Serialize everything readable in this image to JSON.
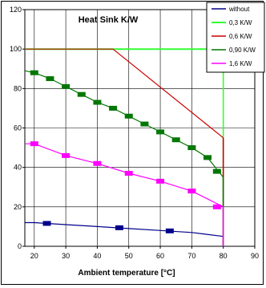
{
  "chart_data": {
    "type": "line",
    "title": "Heat Sink K/W",
    "xlabel": "Ambient temperature  [°C]",
    "ylabel": "",
    "xlim": [
      17,
      90
    ],
    "ylim": [
      0,
      120
    ],
    "x_ticks": [
      20,
      30,
      40,
      50,
      60,
      70,
      80,
      90
    ],
    "y_ticks": [
      0,
      20,
      40,
      60,
      80,
      100,
      120
    ],
    "grid": true,
    "legend_position": "top-right",
    "series": [
      {
        "name": "without",
        "color": "#00008b",
        "points": [
          [
            17,
            12
          ],
          [
            20,
            12
          ],
          [
            30,
            11
          ],
          [
            40,
            10
          ],
          [
            50,
            9
          ],
          [
            60,
            8
          ],
          [
            70,
            7
          ],
          [
            80,
            5
          ]
        ],
        "markers": [
          [
            24,
            11.6
          ],
          [
            47,
            9.4
          ],
          [
            63,
            7.8
          ]
        ],
        "vertical_drop_at": 80
      },
      {
        "name": "0,3 K/W",
        "color": "#33ff33",
        "points": [
          [
            17,
            100
          ],
          [
            75,
            100
          ],
          [
            80,
            88
          ]
        ],
        "markers": [],
        "vertical_drop_at": 80
      },
      {
        "name": "0,6 K/W",
        "color": "#cc0000",
        "points": [
          [
            17,
            100
          ],
          [
            45,
            100
          ],
          [
            80,
            55
          ]
        ],
        "markers": [],
        "vertical_drop_at": 80
      },
      {
        "name": "0,90 K/W",
        "color": "#007700",
        "points": [
          [
            17,
            89
          ],
          [
            20,
            88
          ],
          [
            25,
            85
          ],
          [
            30,
            81
          ],
          [
            35,
            77
          ],
          [
            40,
            73
          ],
          [
            45,
            70
          ],
          [
            50,
            66
          ],
          [
            55,
            62
          ],
          [
            60,
            58
          ],
          [
            65,
            54
          ],
          [
            70,
            50
          ],
          [
            75,
            45
          ],
          [
            80,
            35
          ]
        ],
        "markers": [
          [
            20,
            88
          ],
          [
            25,
            85
          ],
          [
            30,
            81
          ],
          [
            35,
            77
          ],
          [
            40,
            73
          ],
          [
            45,
            70
          ],
          [
            50,
            66
          ],
          [
            55,
            62
          ],
          [
            60,
            58
          ],
          [
            65,
            54
          ],
          [
            70,
            50
          ],
          [
            75,
            45
          ],
          [
            78,
            38
          ]
        ],
        "vertical_drop_at": 80
      },
      {
        "name": "1,6 K/W",
        "color": "#ff00ff",
        "points": [
          [
            17,
            52
          ],
          [
            20,
            52
          ],
          [
            30,
            46
          ],
          [
            40,
            42
          ],
          [
            50,
            37
          ],
          [
            60,
            33
          ],
          [
            70,
            28
          ],
          [
            80,
            20
          ]
        ],
        "markers": [
          [
            20,
            52
          ],
          [
            30,
            46
          ],
          [
            40,
            42
          ],
          [
            50,
            37
          ],
          [
            60,
            33
          ],
          [
            70,
            28
          ],
          [
            78,
            20
          ]
        ],
        "vertical_drop_at": 80
      }
    ]
  }
}
